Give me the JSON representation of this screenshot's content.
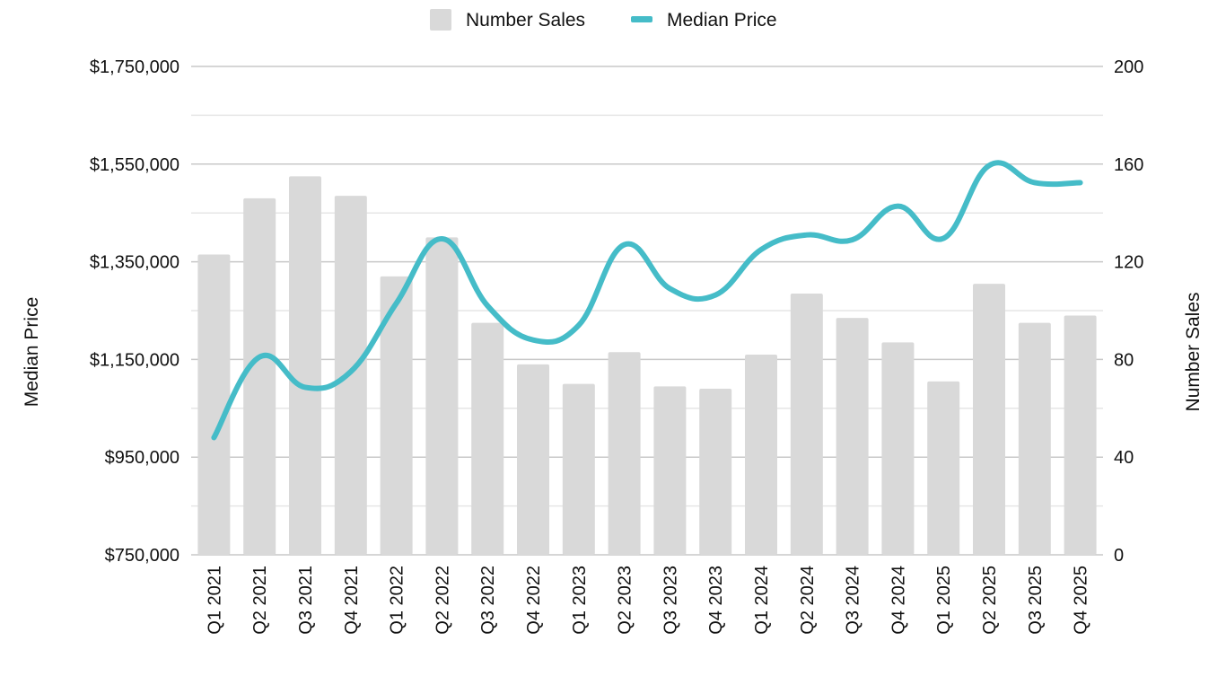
{
  "chart_data": {
    "type": "bar",
    "categories": [
      "Q1 2021",
      "Q2 2021",
      "Q3 2021",
      "Q4 2021",
      "Q1 2022",
      "Q2 2022",
      "Q3 2022",
      "Q4 2022",
      "Q1 2023",
      "Q2 2023",
      "Q3 2023",
      "Q4 2023",
      "Q1 2024",
      "Q2 2024",
      "Q3 2024",
      "Q4 2024",
      "Q1 2025",
      "Q2 2025",
      "Q3 2025",
      "Q4 2025"
    ],
    "series": [
      {
        "name": "Number Sales",
        "type": "bar",
        "axis": "right",
        "color": "#d9d9d9",
        "values": [
          123,
          146,
          155,
          147,
          114,
          130,
          95,
          78,
          70,
          83,
          69,
          68,
          82,
          107,
          97,
          87,
          71,
          111,
          95,
          98
        ]
      },
      {
        "name": "Median Price",
        "type": "line",
        "axis": "left",
        "color": "#45bcc8",
        "values": [
          990000,
          1155000,
          1093000,
          1125000,
          1265000,
          1397000,
          1260000,
          1190000,
          1220000,
          1385000,
          1295000,
          1282000,
          1375000,
          1405000,
          1395000,
          1464000,
          1398000,
          1547000,
          1512000,
          1512000
        ]
      }
    ],
    "y_left": {
      "label": "Median Price",
      "range": [
        750000,
        1750000
      ],
      "ticks": [
        750000,
        950000,
        1150000,
        1350000,
        1550000,
        1750000
      ],
      "tick_labels": [
        "$750,000",
        "$950,000",
        "$1,150,000",
        "$1,350,000",
        "$1,550,000",
        "$1,750,000"
      ]
    },
    "y_right": {
      "label": "Number Sales",
      "range": [
        0,
        200
      ],
      "ticks": [
        0,
        40,
        80,
        120,
        160,
        200
      ],
      "tick_labels": [
        "0",
        "40",
        "80",
        "120",
        "160",
        "200"
      ]
    },
    "grid": true,
    "legend": {
      "position": "top-center",
      "entries": [
        "Number Sales",
        "Median Price"
      ]
    }
  }
}
